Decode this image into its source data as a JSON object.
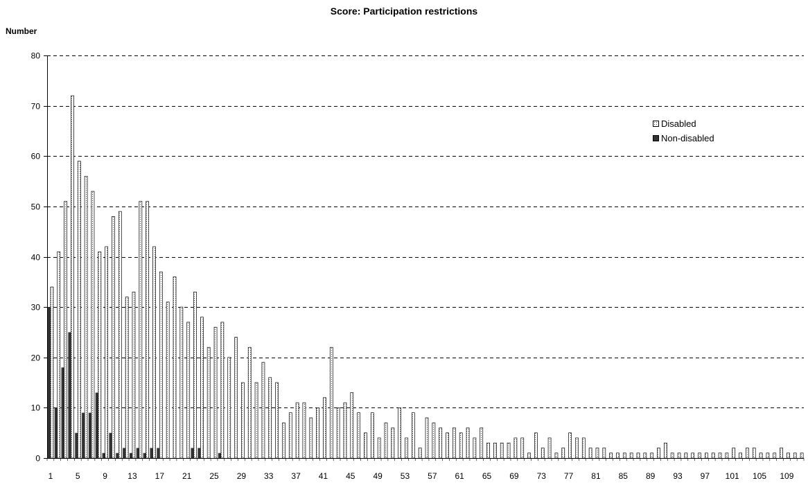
{
  "chart_data": {
    "type": "bar",
    "title": "Score: Participation restrictions",
    "ylabel": "Number",
    "xlabel": "",
    "ylim": [
      0,
      80
    ],
    "yticks": [
      0,
      10,
      20,
      30,
      40,
      50,
      60,
      70,
      80
    ],
    "grid": true,
    "legend_position": "right",
    "x_start": 1,
    "x_end": 111,
    "x_tick_labels": [
      "1",
      "5",
      "9",
      "13",
      "17",
      "21",
      "25",
      "29",
      "33",
      "37",
      "41",
      "45",
      "49",
      "53",
      "57",
      "61",
      "65",
      "69",
      "73",
      "77",
      "81",
      "85",
      "89",
      "93",
      "97",
      "101",
      "105",
      "109"
    ],
    "series": [
      {
        "name": "Disabled",
        "color": "#ffffff",
        "values": [
          34,
          41,
          51,
          72,
          59,
          56,
          53,
          41,
          42,
          48,
          49,
          32,
          33,
          51,
          51,
          42,
          37,
          31,
          36,
          30,
          27,
          33,
          28,
          22,
          26,
          27,
          20,
          24,
          15,
          22,
          15,
          19,
          16,
          15,
          7,
          9,
          11,
          11,
          8,
          10,
          12,
          22,
          10,
          11,
          13,
          9,
          5,
          9,
          4,
          7,
          6,
          10,
          4,
          9,
          2,
          8,
          7,
          6,
          5,
          6,
          5,
          6,
          4,
          6,
          3,
          3,
          3,
          3,
          4,
          4,
          1,
          5,
          2,
          4,
          1,
          2,
          5,
          4,
          4,
          2,
          2,
          2,
          1,
          1,
          1,
          1,
          1,
          1,
          1,
          2,
          3,
          1,
          1,
          1,
          1,
          1,
          1,
          1,
          1,
          1,
          2,
          1,
          2,
          2,
          1,
          1,
          1,
          2,
          1,
          1,
          1
        ]
      },
      {
        "name": "Non-disabled",
        "color": "#333333",
        "values": [
          30,
          10,
          18,
          25,
          5,
          9,
          9,
          13,
          1,
          5,
          1,
          2,
          1,
          2,
          1,
          2,
          2,
          0,
          0,
          0,
          0,
          2,
          2,
          0,
          0,
          1,
          0,
          0,
          0,
          0,
          0,
          0,
          0,
          0,
          0,
          0,
          0,
          0,
          0,
          0,
          0,
          0,
          0,
          0,
          0,
          0,
          0,
          0,
          0,
          0,
          0,
          0,
          0,
          0,
          0,
          0,
          0,
          0,
          0,
          0,
          0,
          0,
          0,
          0,
          0,
          0,
          0,
          0,
          0,
          0,
          0,
          0,
          0,
          0,
          0,
          0,
          0,
          0,
          0,
          0,
          0,
          0,
          0,
          0,
          0,
          0,
          0,
          0,
          0,
          0,
          0,
          0,
          0,
          0,
          0,
          0,
          0,
          0,
          0,
          0,
          0,
          0,
          0,
          0,
          0,
          0,
          0,
          0,
          0,
          0,
          0
        ]
      }
    ]
  }
}
